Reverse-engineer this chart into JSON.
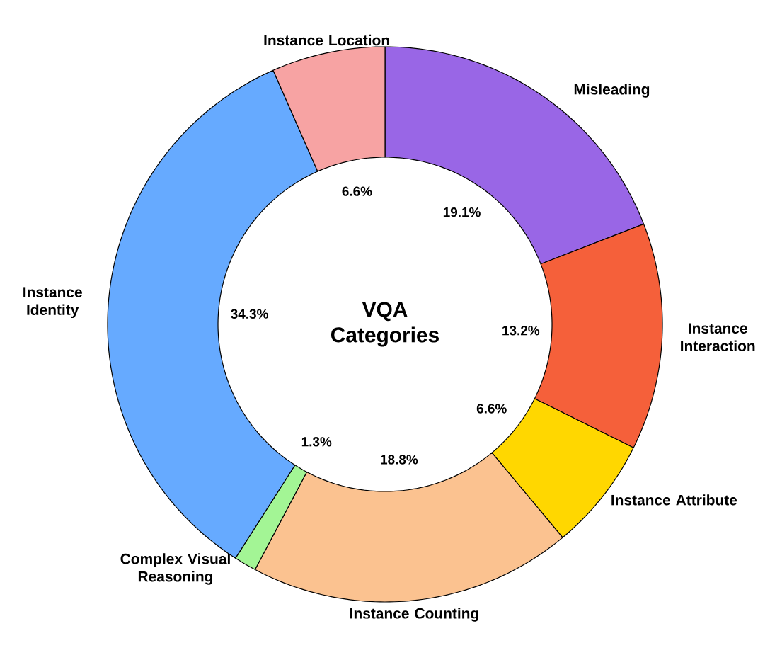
{
  "chart_data": {
    "type": "donut",
    "title": "VQA Categories",
    "categories": [
      "Misleading",
      "Instance Interaction",
      "Instance Attribute",
      "Instance Counting",
      "Complex Visual Reasoning",
      "Instance Identity",
      "Instance Location"
    ],
    "values": [
      19.1,
      13.2,
      6.6,
      18.8,
      1.3,
      34.3,
      6.6
    ],
    "value_labels": [
      "19.1%",
      "13.2%",
      "6.6%",
      "18.8%",
      "1.3%",
      "34.3%",
      "6.6%"
    ],
    "colors": [
      "#9966e6",
      "#f5603a",
      "#ffd700",
      "#fbc290",
      "#a3f595",
      "#66aaff",
      "#f7a3a3"
    ]
  }
}
